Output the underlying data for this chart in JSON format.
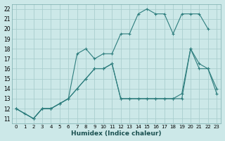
{
  "xlabel": "Humidex (Indice chaleur)",
  "bg_color": "#cce8e8",
  "line_color": "#2d7d7d",
  "grid_color": "#aacece",
  "xlim": [
    -0.5,
    23.5
  ],
  "ylim": [
    10.5,
    22.5
  ],
  "xticks": [
    0,
    1,
    2,
    3,
    4,
    5,
    6,
    7,
    8,
    9,
    10,
    11,
    12,
    13,
    14,
    15,
    16,
    17,
    18,
    19,
    20,
    21,
    22,
    23
  ],
  "yticks": [
    11,
    12,
    13,
    14,
    15,
    16,
    17,
    18,
    19,
    20,
    21,
    22
  ],
  "line1_x": [
    0,
    1,
    2,
    3,
    4,
    5,
    6,
    7,
    8,
    9,
    10,
    11,
    12,
    13,
    14,
    15,
    16,
    17,
    18,
    19,
    20,
    21,
    22
  ],
  "line1_y": [
    12,
    11.5,
    11,
    12,
    12,
    12.5,
    13,
    17.5,
    18,
    17,
    17.5,
    17.5,
    19.5,
    19.5,
    21.5,
    22,
    21.5,
    21.5,
    19.5,
    21.5,
    21.5,
    21.5,
    20
  ],
  "line2_x": [
    0,
    2,
    3,
    4,
    5,
    6,
    7,
    8,
    9,
    10,
    11,
    12,
    13,
    14,
    15,
    16,
    17,
    18,
    19,
    20,
    21,
    22,
    23
  ],
  "line2_y": [
    12,
    11,
    12,
    12,
    12.5,
    13,
    14,
    15,
    16,
    16,
    16.5,
    13,
    13,
    13,
    13,
    13,
    13,
    13,
    13.5,
    18,
    16,
    16,
    13.5
  ],
  "line3_x": [
    0,
    2,
    3,
    4,
    5,
    6,
    7,
    8,
    9,
    10,
    11,
    12,
    13,
    14,
    15,
    16,
    17,
    18,
    19,
    20,
    21,
    22,
    23
  ],
  "line3_y": [
    12,
    11,
    12,
    12,
    12.5,
    13,
    14,
    15,
    16,
    16,
    16.5,
    13,
    13,
    13,
    13,
    13,
    13,
    13,
    13,
    18,
    16.5,
    16,
    14
  ]
}
